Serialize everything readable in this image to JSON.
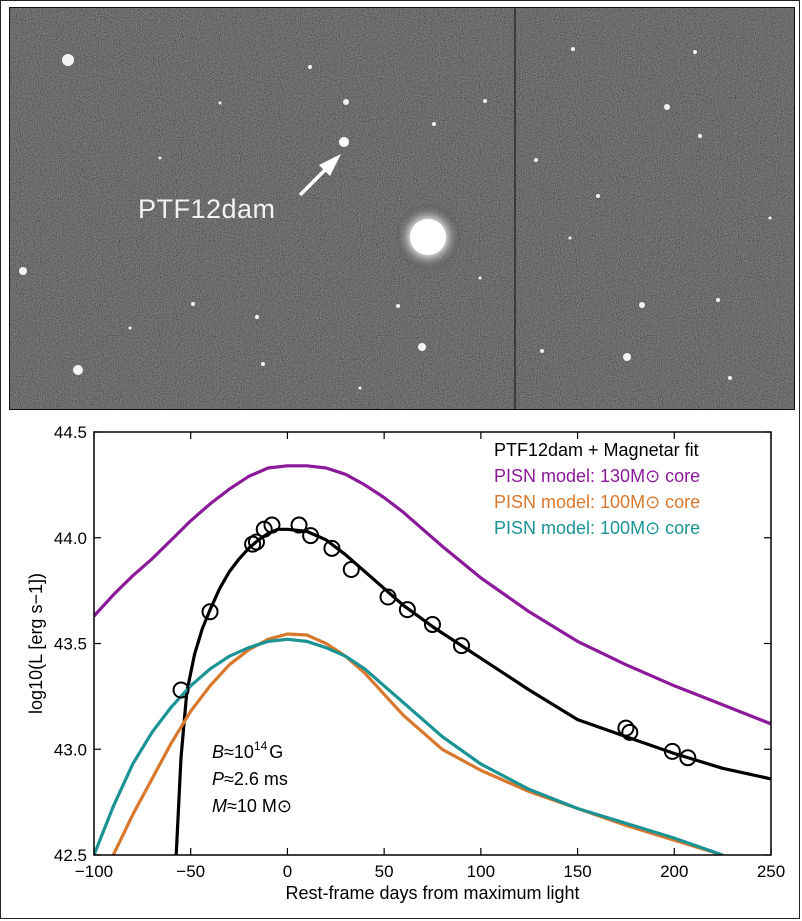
{
  "image_label": "PTF12dam",
  "chart_data": {
    "type": "line",
    "xlabel": "Rest-frame days from maximum light",
    "ylabel": "log10(L [erg s−1])",
    "xlim": [
      -100,
      250
    ],
    "ylim": [
      42.5,
      44.5
    ],
    "xticks": [
      "−100",
      "−50",
      "0",
      "50",
      "100",
      "150",
      "200",
      "250"
    ],
    "yticks": [
      "42.5",
      "43.0",
      "43.5",
      "44.0",
      "44.5"
    ],
    "grid": false,
    "legend_position": "top-right",
    "series": [
      {
        "name": "PTF12dam + Magnetar fit",
        "color": "#000000",
        "x": [
          -57.5,
          -55,
          -52,
          -48,
          -44,
          -40,
          -35,
          -30,
          -25,
          -20,
          -15,
          -10,
          -5,
          0,
          10,
          20,
          30,
          40,
          50,
          60,
          75,
          90,
          100,
          125,
          150,
          175,
          200,
          225,
          250
        ],
        "y": [
          42.5,
          42.96,
          43.27,
          43.45,
          43.57,
          43.66,
          43.76,
          43.84,
          43.9,
          43.95,
          43.99,
          44.02,
          44.04,
          44.04,
          44.03,
          43.99,
          43.92,
          43.84,
          43.76,
          43.68,
          43.58,
          43.49,
          43.43,
          43.28,
          43.14,
          43.06,
          42.98,
          42.91,
          42.86
        ]
      },
      {
        "name": "PISN model: 130M⊙ core",
        "color": "#8b1a9a",
        "x": [
          -100,
          -90,
          -80,
          -70,
          -60,
          -50,
          -40,
          -30,
          -20,
          -10,
          0,
          10,
          20,
          30,
          40,
          50,
          60,
          70,
          80,
          100,
          125,
          150,
          175,
          200,
          225,
          250
        ],
        "y": [
          43.63,
          43.73,
          43.82,
          43.9,
          43.99,
          44.08,
          44.16,
          44.23,
          44.29,
          44.33,
          44.34,
          44.34,
          44.33,
          44.3,
          44.25,
          44.19,
          44.12,
          44.04,
          43.96,
          43.81,
          43.65,
          43.51,
          43.4,
          43.3,
          43.21,
          43.12
        ]
      },
      {
        "name": "PISN model: 100M⊙ core",
        "color": "#d9782d",
        "x": [
          -90,
          -80,
          -70,
          -60,
          -50,
          -40,
          -30,
          -20,
          -10,
          0,
          10,
          20,
          30,
          40,
          50,
          60,
          80,
          100,
          125,
          150,
          175,
          200,
          225
        ],
        "y": [
          42.5,
          42.69,
          42.86,
          43.03,
          43.18,
          43.3,
          43.4,
          43.47,
          43.52,
          43.545,
          43.54,
          43.5,
          43.44,
          43.36,
          43.26,
          43.16,
          43.0,
          42.9,
          42.8,
          42.72,
          42.64,
          42.57,
          42.5
        ]
      },
      {
        "name": "PISN model: 100M⊙ core",
        "color": "#1a9394",
        "x": [
          -100,
          -90,
          -80,
          -70,
          -60,
          -50,
          -40,
          -30,
          -20,
          -10,
          0,
          10,
          20,
          30,
          40,
          50,
          60,
          80,
          100,
          125,
          150,
          175,
          200,
          225
        ],
        "y": [
          42.5,
          42.73,
          42.93,
          43.08,
          43.2,
          43.3,
          43.38,
          43.44,
          43.48,
          43.51,
          43.52,
          43.51,
          43.48,
          43.44,
          43.38,
          43.3,
          43.22,
          43.06,
          42.93,
          42.81,
          42.72,
          42.65,
          42.58,
          42.5
        ]
      }
    ],
    "observations": {
      "x": [
        -55,
        -40,
        -18,
        -16,
        -12,
        -8,
        6,
        12,
        23,
        33,
        52,
        62,
        75,
        90,
        175,
        177,
        199,
        207
      ],
      "y": [
        43.28,
        43.65,
        43.97,
        43.98,
        44.04,
        44.06,
        44.06,
        44.01,
        43.95,
        43.85,
        43.72,
        43.66,
        43.59,
        43.49,
        43.1,
        43.08,
        42.99,
        42.96
      ]
    },
    "annotation": {
      "B_label": "B",
      "B_value": "≈10",
      "B_exp": "14",
      "B_unit": "G",
      "P_label": "P",
      "P_value": "≈2.6 ms",
      "M_label": "M",
      "M_value": "≈10 M⊙"
    }
  }
}
